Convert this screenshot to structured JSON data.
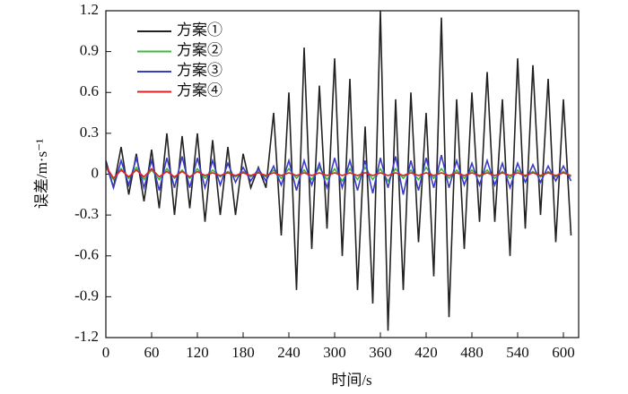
{
  "chart_data": {
    "type": "line",
    "xlabel": "时间/s",
    "ylabel": "误差/m·s⁻¹",
    "xlim": [
      0,
      620
    ],
    "ylim": [
      -1.2,
      1.2
    ],
    "xticks": [
      0,
      60,
      120,
      180,
      240,
      300,
      360,
      420,
      480,
      540,
      600
    ],
    "yticks": [
      1.2,
      0.9,
      0.6,
      0.3,
      0,
      -0.3,
      -0.6,
      -0.9,
      -1.2
    ],
    "legend": "upper left",
    "x": [
      0,
      10,
      20,
      30,
      40,
      50,
      60,
      70,
      80,
      90,
      100,
      110,
      120,
      130,
      140,
      150,
      160,
      170,
      180,
      190,
      200,
      210,
      220,
      230,
      240,
      250,
      260,
      270,
      280,
      290,
      300,
      310,
      320,
      330,
      340,
      350,
      360,
      370,
      380,
      390,
      400,
      410,
      420,
      430,
      440,
      450,
      460,
      470,
      480,
      490,
      500,
      510,
      520,
      530,
      540,
      550,
      560,
      570,
      580,
      590,
      600,
      610
    ],
    "series": [
      {
        "name": "方案①",
        "color": "#222222",
        "values": [
          0.1,
          -0.1,
          0.2,
          -0.15,
          0.15,
          -0.2,
          0.18,
          -0.25,
          0.3,
          -0.3,
          0.28,
          -0.25,
          0.3,
          -0.35,
          0.25,
          -0.3,
          0.2,
          -0.3,
          0.15,
          -0.1,
          0.05,
          -0.1,
          0.45,
          -0.45,
          0.6,
          -0.85,
          0.93,
          -0.55,
          0.65,
          -0.4,
          0.85,
          -0.6,
          0.7,
          -0.85,
          0.35,
          -0.95,
          1.2,
          -1.15,
          0.55,
          -0.85,
          0.6,
          -0.5,
          0.45,
          -0.75,
          1.15,
          -1.05,
          0.55,
          -0.55,
          0.6,
          -0.35,
          0.75,
          -0.35,
          0.55,
          -0.6,
          0.85,
          -0.4,
          0.8,
          -0.3,
          0.7,
          -0.5,
          0.55,
          -0.45
        ]
      },
      {
        "name": "方案②",
        "color": "#3cb83c",
        "values": [
          0.05,
          -0.04,
          0.04,
          -0.03,
          0.05,
          -0.04,
          0.03,
          -0.04,
          0.04,
          -0.03,
          0.03,
          -0.03,
          0.04,
          -0.03,
          0.03,
          -0.02,
          0.02,
          -0.02,
          0.02,
          -0.02,
          0.02,
          -0.02,
          0.03,
          -0.03,
          0.04,
          -0.03,
          0.03,
          -0.04,
          0.05,
          -0.04,
          0.04,
          -0.05,
          0.04,
          -0.04,
          0.05,
          -0.04,
          0.04,
          -0.05,
          0.04,
          -0.03,
          0.03,
          -0.04,
          0.05,
          -0.03,
          0.04,
          -0.03,
          0.03,
          -0.03,
          0.03,
          -0.02,
          0.03,
          -0.03,
          0.02,
          -0.03,
          0.03,
          -0.02,
          0.02,
          -0.02,
          0.02,
          -0.02,
          0.02,
          -0.02
        ]
      },
      {
        "name": "方案③",
        "color": "#3a3ac8",
        "values": [
          0.08,
          -0.1,
          0.1,
          -0.08,
          0.12,
          -0.1,
          0.1,
          -0.12,
          0.12,
          -0.1,
          0.13,
          -0.1,
          0.12,
          -0.1,
          0.1,
          -0.08,
          0.08,
          -0.06,
          0.05,
          -0.05,
          0.04,
          -0.05,
          0.06,
          -0.08,
          0.1,
          -0.12,
          0.1,
          -0.08,
          0.08,
          -0.1,
          0.12,
          -0.1,
          0.1,
          -0.12,
          0.1,
          -0.14,
          0.12,
          -0.1,
          0.13,
          -0.15,
          0.1,
          -0.12,
          0.12,
          -0.1,
          0.14,
          -0.1,
          0.1,
          -0.08,
          0.08,
          -0.08,
          0.1,
          -0.08,
          0.08,
          -0.1,
          0.08,
          -0.06,
          0.07,
          -0.06,
          0.06,
          -0.05,
          0.06,
          -0.05
        ]
      },
      {
        "name": "方案④",
        "color": "#e02020",
        "values": [
          0.06,
          -0.03,
          0.03,
          -0.02,
          0.03,
          -0.02,
          0.04,
          -0.02,
          0.02,
          -0.02,
          0.02,
          -0.02,
          0.02,
          -0.01,
          0.01,
          -0.01,
          0.01,
          -0.01,
          0.01,
          -0.01,
          0.01,
          -0.01,
          0.01,
          -0.01,
          0.01,
          -0.01,
          0.01,
          -0.01,
          0.01,
          -0.01,
          0.01,
          -0.01,
          0.01,
          -0.01,
          0.01,
          -0.01,
          0.01,
          -0.01,
          0.01,
          -0.01,
          0.01,
          -0.01,
          0.01,
          -0.01,
          0.01,
          -0.01,
          0.01,
          -0.01,
          0.01,
          -0.01,
          0.01,
          -0.01,
          0.01,
          -0.01,
          0.01,
          -0.01,
          0.01,
          -0.01,
          0.01,
          -0.01,
          0.01,
          -0.01
        ]
      }
    ]
  }
}
